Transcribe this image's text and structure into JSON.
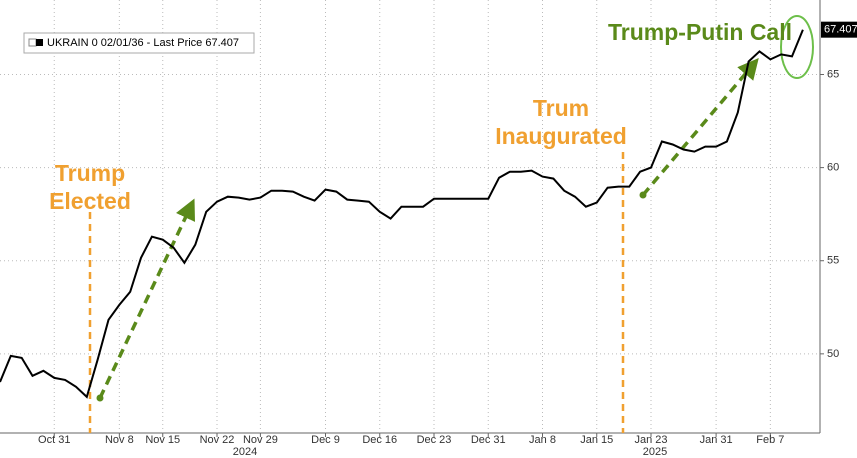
{
  "chart_data": {
    "type": "line",
    "categories": [
      null,
      null,
      null,
      null,
      null,
      "Oct 31",
      null,
      null,
      null,
      null,
      null,
      "Nov 8",
      null,
      null,
      null,
      "Nov 15",
      null,
      null,
      null,
      null,
      "Nov 22",
      null,
      null,
      null,
      "Nov 29",
      null,
      null,
      null,
      null,
      null,
      "Dec 9",
      null,
      null,
      null,
      null,
      "Dec 16",
      null,
      null,
      null,
      null,
      "Dec 23",
      null,
      null,
      null,
      null,
      "Dec 31",
      null,
      null,
      null,
      null,
      "Jan 8",
      null,
      null,
      null,
      null,
      "Jan 15",
      null,
      null,
      null,
      null,
      "Jan 23",
      null,
      null,
      null,
      null,
      null,
      "Jan 31",
      null,
      null,
      null,
      null,
      "Feb 7",
      null,
      null,
      null
    ],
    "year_labels": [
      "2024",
      "2025"
    ],
    "series": [
      {
        "name": "UKRAIN 0 02/01/36 - Last Price 67.407",
        "color": "#000000",
        "values": [
          48.49,
          49.89,
          49.78,
          48.82,
          49.09,
          48.71,
          48.6,
          48.23,
          47.69,
          49.68,
          51.83,
          52.63,
          53.33,
          55.16,
          56.29,
          56.13,
          55.7,
          54.89,
          55.86,
          57.63,
          58.17,
          58.44,
          58.39,
          58.28,
          58.39,
          58.76,
          58.76,
          58.71,
          58.44,
          58.23,
          58.82,
          58.71,
          58.28,
          58.23,
          58.17,
          57.63,
          57.26,
          57.9,
          57.9,
          57.9,
          58.33,
          58.33,
          58.33,
          58.33,
          58.33,
          58.33,
          59.46,
          59.78,
          59.78,
          59.84,
          59.52,
          59.41,
          58.76,
          58.44,
          57.9,
          58.12,
          58.92,
          58.98,
          58.98,
          59.78,
          60.0,
          61.4,
          61.24,
          60.97,
          60.86,
          61.13,
          61.13,
          61.4,
          62.96,
          65.7,
          66.24,
          65.81,
          66.08,
          65.97,
          67.407
        ]
      }
    ],
    "ylim": [
      45.75,
      69
    ],
    "yticks": [
      50,
      55,
      60,
      65
    ],
    "grid": true,
    "annotations": [
      {
        "lines": [
          "Trump",
          "Elected"
        ],
        "color": "#f0a030"
      },
      {
        "lines": [
          "Trum",
          "Inaugurated"
        ],
        "color": "#f0a030"
      },
      {
        "lines": [
          "Trump-Putin Call"
        ],
        "color": "#5a8a1a"
      }
    ]
  }
}
